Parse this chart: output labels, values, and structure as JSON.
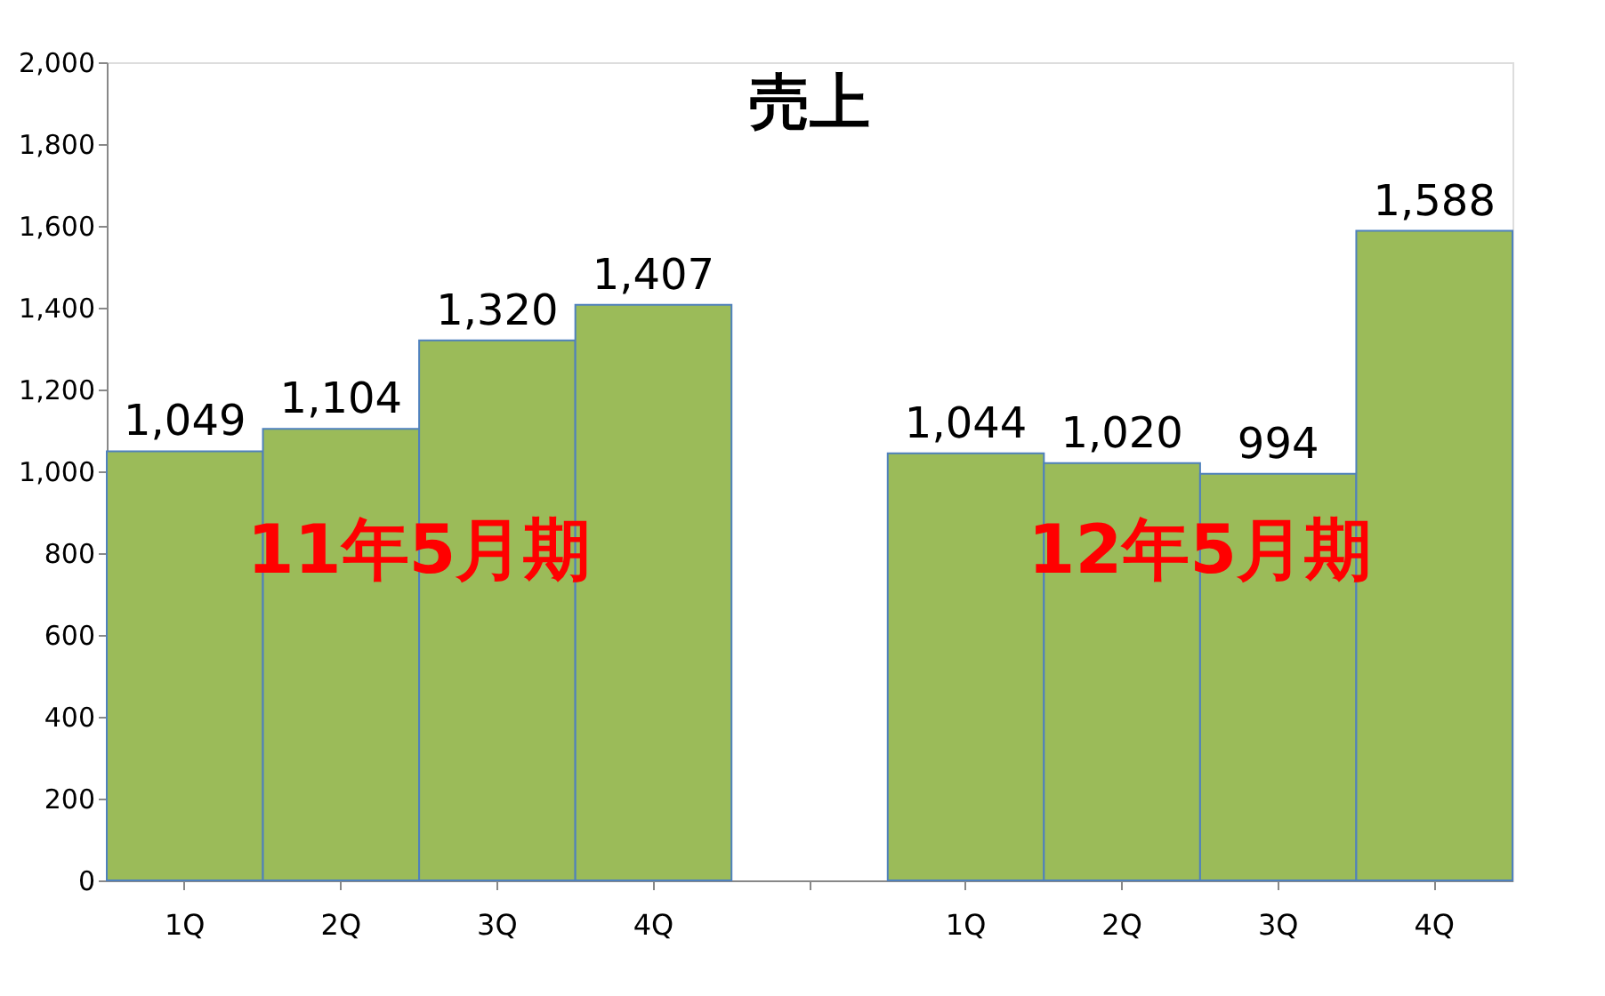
{
  "chart_data": {
    "type": "bar",
    "title": "売上",
    "categories": [
      "1Q",
      "2Q",
      "3Q",
      "4Q",
      null,
      "1Q",
      "2Q",
      "3Q",
      "4Q"
    ],
    "values": [
      1049,
      1104,
      1320,
      1407,
      null,
      1044,
      1020,
      994,
      1588
    ],
    "color": "#9bbb59",
    "ylim": [
      0,
      2000
    ],
    "yticks": [
      0,
      {
        "value": 200,
        "label": "200"
      },
      {
        "value": 400,
        "label": "400"
      },
      {
        "value": 600,
        "label": "600"
      },
      {
        "value": 800,
        "label": "800"
      },
      {
        "value": 1000,
        "label": "1,000"
      },
      {
        "value": 1200,
        "label": "1,200"
      },
      {
        "value": 1400,
        "label": "1,400"
      },
      {
        "value": 1600,
        "label": "1,600"
      },
      {
        "value": 1800,
        "label": "1,800"
      },
      {
        "value": 2000,
        "label": "2,000"
      }
    ],
    "grid": false,
    "value_labels": [
      "1,049",
      "1,104",
      "1,320",
      "1,407",
      null,
      "1,044",
      "1,020",
      "994",
      "1,588"
    ],
    "annotations": [
      "11年5月期",
      "12年5月期"
    ]
  }
}
